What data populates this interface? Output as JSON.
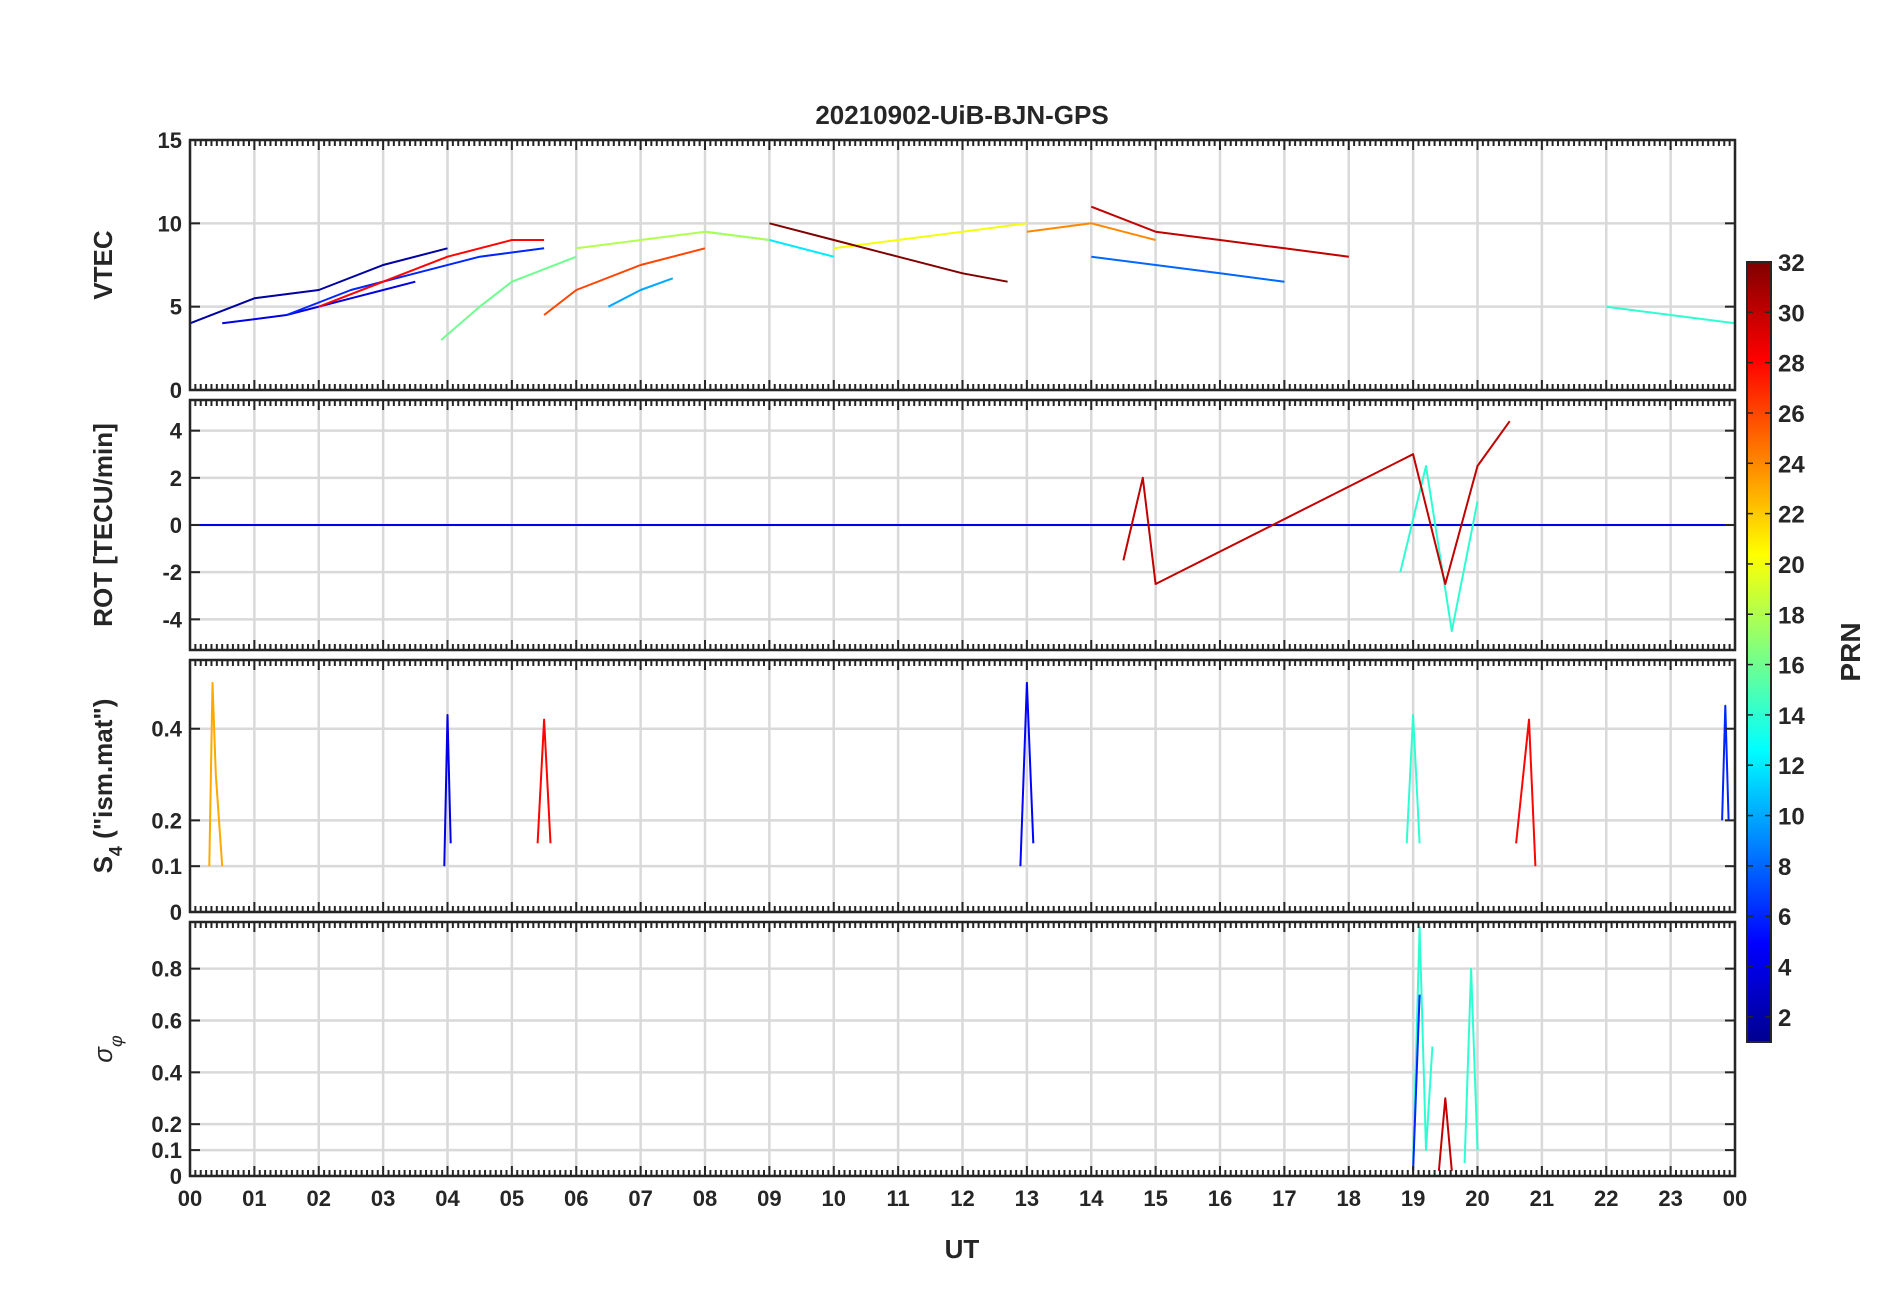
{
  "chart_data": {
    "title": "20210902-UiB-BJN-GPS",
    "xlabel": "UT",
    "x_tick_labels": [
      "00",
      "01",
      "02",
      "03",
      "04",
      "05",
      "06",
      "07",
      "08",
      "09",
      "10",
      "11",
      "12",
      "13",
      "14",
      "15",
      "16",
      "17",
      "18",
      "19",
      "20",
      "21",
      "22",
      "23",
      "00"
    ],
    "xlim_hours": [
      0,
      24
    ],
    "grid": true,
    "colormap": "jet",
    "colorbar": {
      "label": "PRN",
      "range": [
        1,
        32
      ],
      "tick_values": [
        2,
        4,
        6,
        8,
        10,
        12,
        14,
        16,
        18,
        20,
        22,
        24,
        26,
        28,
        30,
        32
      ],
      "tick_labels": [
        "2",
        "4",
        "6",
        "8",
        "10",
        "12",
        "14",
        "16",
        "18",
        "20",
        "22",
        "24",
        "26",
        "28",
        "30",
        "32"
      ],
      "placement": "right"
    },
    "panels": [
      {
        "id": "vtec",
        "type": "line",
        "ylabel": "VTEC",
        "ylim": [
          0,
          15
        ],
        "y_ticks": [
          0,
          5,
          10,
          15
        ],
        "y_tick_labels": [
          "0",
          "5",
          "10",
          "15"
        ],
        "series": [
          {
            "prn": 2,
            "x": [
              0.0,
              1.0,
              2.0,
              3.0,
              4.0
            ],
            "y": [
              4.0,
              5.5,
              6.0,
              7.5,
              8.5
            ]
          },
          {
            "prn": 4,
            "x": [
              0.5,
              1.5,
              2.5,
              3.5
            ],
            "y": [
              4.0,
              4.5,
              5.5,
              6.5
            ]
          },
          {
            "prn": 6,
            "x": [
              1.5,
              2.5,
              3.5,
              4.5,
              5.5
            ],
            "y": [
              4.5,
              6.0,
              7.0,
              8.0,
              8.5
            ]
          },
          {
            "prn": 8,
            "x": [
              14.0,
              15.0,
              16.0,
              17.0
            ],
            "y": [
              8.0,
              7.5,
              7.0,
              6.5
            ]
          },
          {
            "prn": 10,
            "x": [
              6.5,
              7.0,
              7.5
            ],
            "y": [
              5.0,
              6.0,
              6.7
            ]
          },
          {
            "prn": 12,
            "x": [
              8.0,
              9.0,
              10.0
            ],
            "y": [
              9.5,
              9.0,
              8.0
            ]
          },
          {
            "prn": 14,
            "x": [
              22.0,
              23.0,
              24.0
            ],
            "y": [
              5.0,
              4.5,
              4.0
            ]
          },
          {
            "prn": 16,
            "x": [
              3.9,
              4.5,
              5.0,
              6.0
            ],
            "y": [
              3.0,
              5.0,
              6.5,
              8.0
            ]
          },
          {
            "prn": 18,
            "x": [
              6.0,
              7.0,
              8.0,
              9.0
            ],
            "y": [
              8.5,
              9.0,
              9.5,
              9.0
            ]
          },
          {
            "prn": 20,
            "x": [
              10.0,
              11.0,
              12.0,
              13.0
            ],
            "y": [
              8.5,
              9.0,
              9.5,
              10.0
            ]
          },
          {
            "prn": 24,
            "x": [
              13.0,
              14.0,
              15.0
            ],
            "y": [
              9.5,
              10.0,
              9.0
            ]
          },
          {
            "prn": 26,
            "x": [
              5.5,
              6.0,
              7.0,
              8.0
            ],
            "y": [
              4.5,
              6.0,
              7.5,
              8.5
            ]
          },
          {
            "prn": 28,
            "x": [
              2.0,
              3.0,
              4.0,
              5.0,
              5.5
            ],
            "y": [
              5.0,
              6.5,
              8.0,
              9.0,
              9.0
            ]
          },
          {
            "prn": 30,
            "x": [
              14.0,
              15.0,
              16.0,
              17.0,
              18.0
            ],
            "y": [
              11.0,
              9.5,
              9.0,
              8.5,
              8.0
            ]
          },
          {
            "prn": 32,
            "x": [
              9.0,
              10.0,
              11.0,
              12.0,
              12.7
            ],
            "y": [
              10.0,
              9.0,
              8.0,
              7.0,
              6.5
            ]
          }
        ]
      },
      {
        "id": "rot",
        "type": "line",
        "ylabel": "ROT [TECU/min]",
        "ylim": [
          -5.3,
          5.3
        ],
        "y_ticks": [
          -4,
          -2,
          0,
          2,
          4
        ],
        "y_tick_labels": [
          "-4",
          "-2",
          "0",
          "2",
          "4"
        ],
        "series": [
          {
            "prn": 4,
            "x": [
              0.0,
              6.0,
              12.0,
              18.0,
              24.0
            ],
            "y": [
              0.0,
              0.0,
              0.0,
              0.0,
              0.0
            ]
          },
          {
            "prn": 14,
            "x": [
              18.8,
              19.2,
              19.6,
              20.0
            ],
            "y": [
              -2.0,
              2.5,
              -4.5,
              1.0
            ]
          },
          {
            "prn": 30,
            "x": [
              14.5,
              14.8,
              15.0,
              19.0,
              19.5,
              20.0,
              20.5
            ],
            "y": [
              -1.5,
              2.0,
              -2.5,
              3.0,
              -2.5,
              2.5,
              4.4
            ]
          }
        ]
      },
      {
        "id": "s4",
        "type": "line",
        "ylabel": "S4 (\"ism.mat\")",
        "ylabel_main": "S",
        "ylabel_sub": "4",
        "ylabel_rest": " (\"ism.mat\")",
        "ylim": [
          0,
          0.55
        ],
        "y_ticks": [
          0,
          0.1,
          0.2,
          0.4
        ],
        "y_tick_labels": [
          "0",
          "0.1",
          "0.2",
          "0.4"
        ],
        "series": [
          {
            "prn": 23,
            "x": [
              0.3,
              0.35,
              0.4,
              0.5
            ],
            "y": [
              0.1,
              0.5,
              0.3,
              0.1
            ]
          },
          {
            "prn": 4,
            "x": [
              3.95,
              4.0,
              4.05
            ],
            "y": [
              0.1,
              0.43,
              0.15
            ]
          },
          {
            "prn": 28,
            "x": [
              5.4,
              5.5,
              5.6
            ],
            "y": [
              0.15,
              0.42,
              0.15
            ]
          },
          {
            "prn": 5,
            "x": [
              12.9,
              13.0,
              13.1
            ],
            "y": [
              0.1,
              0.5,
              0.15
            ]
          },
          {
            "prn": 14,
            "x": [
              18.9,
              19.0,
              19.1
            ],
            "y": [
              0.15,
              0.43,
              0.15
            ]
          },
          {
            "prn": 28,
            "x": [
              20.6,
              20.8,
              20.9
            ],
            "y": [
              0.15,
              0.42,
              0.1
            ]
          },
          {
            "prn": 6,
            "x": [
              23.8,
              23.85,
              23.9
            ],
            "y": [
              0.2,
              0.45,
              0.2
            ]
          }
        ]
      },
      {
        "id": "sigma_phi",
        "type": "line",
        "ylabel": "σ φ",
        "ylabel_main": "σ",
        "ylabel_sub": "φ",
        "ylim": [
          0,
          0.98
        ],
        "y_ticks": [
          0,
          0.1,
          0.2,
          0.4,
          0.6,
          0.8
        ],
        "y_tick_labels": [
          "0",
          "0.1",
          "0.2",
          "0.4",
          "0.6",
          "0.8"
        ],
        "series": [
          {
            "prn": 14,
            "x": [
              19.0,
              19.1,
              19.2,
              19.3
            ],
            "y": [
              0.05,
              0.96,
              0.1,
              0.5
            ]
          },
          {
            "prn": 14,
            "x": [
              19.8,
              19.9,
              20.0
            ],
            "y": [
              0.05,
              0.8,
              0.1
            ]
          },
          {
            "prn": 6,
            "x": [
              19.0,
              19.1
            ],
            "y": [
              0.02,
              0.7
            ]
          },
          {
            "prn": 30,
            "x": [
              19.4,
              19.5,
              19.6
            ],
            "y": [
              0.02,
              0.3,
              0.02
            ]
          }
        ]
      }
    ]
  }
}
